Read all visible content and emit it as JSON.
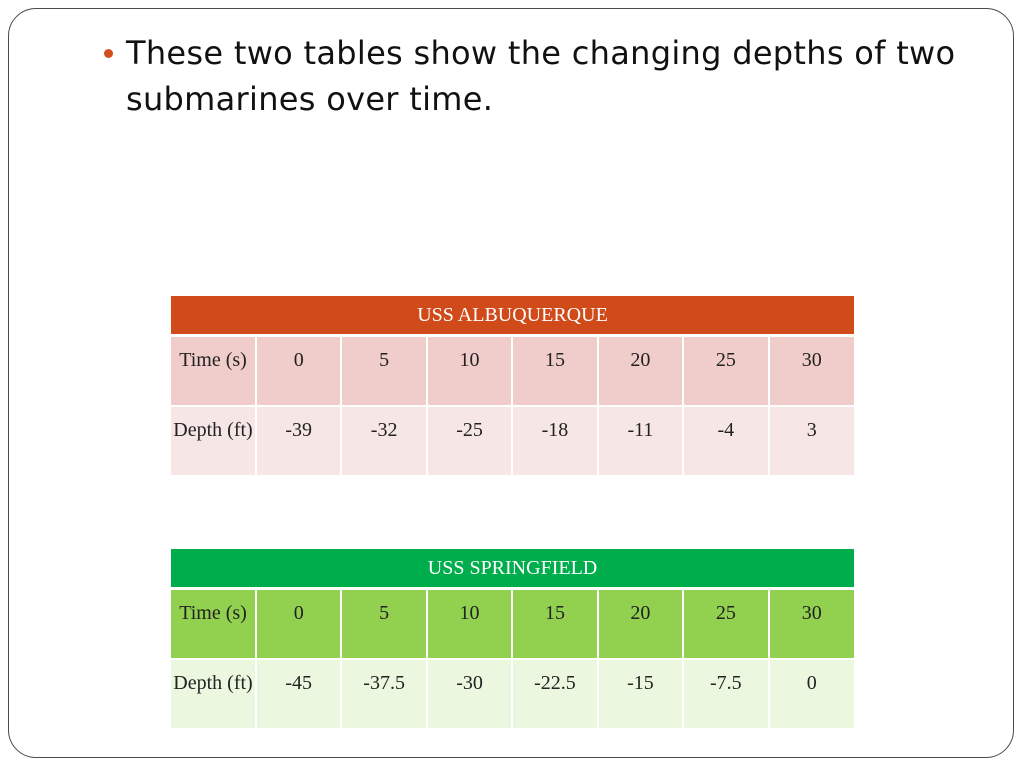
{
  "slide": {
    "bullet_text": "These two tables show the changing depths of two submarines over time."
  },
  "tables": [
    {
      "title": "USS ALBUQUERQUE",
      "time_label": "Time (s)",
      "depth_label": "Depth (ft)",
      "times": [
        "0",
        "5",
        "10",
        "15",
        "20",
        "25",
        "30"
      ],
      "depths": [
        "-39",
        "-32",
        "-25",
        "-18",
        "-11",
        "-4",
        "3"
      ]
    },
    {
      "title": "USS SPRINGFIELD",
      "time_label": "Time (s)",
      "depth_label": "Depth (ft)",
      "times": [
        "0",
        "5",
        "10",
        "15",
        "20",
        "25",
        "30"
      ],
      "depths": [
        "-45",
        "-37.5",
        "-30",
        "-22.5",
        "-15",
        "-7.5",
        "0"
      ]
    }
  ],
  "colors": {
    "bullet": "#d24e1e",
    "albuquerque_header": "#d04a1a",
    "springfield_header": "#00ad4d"
  }
}
